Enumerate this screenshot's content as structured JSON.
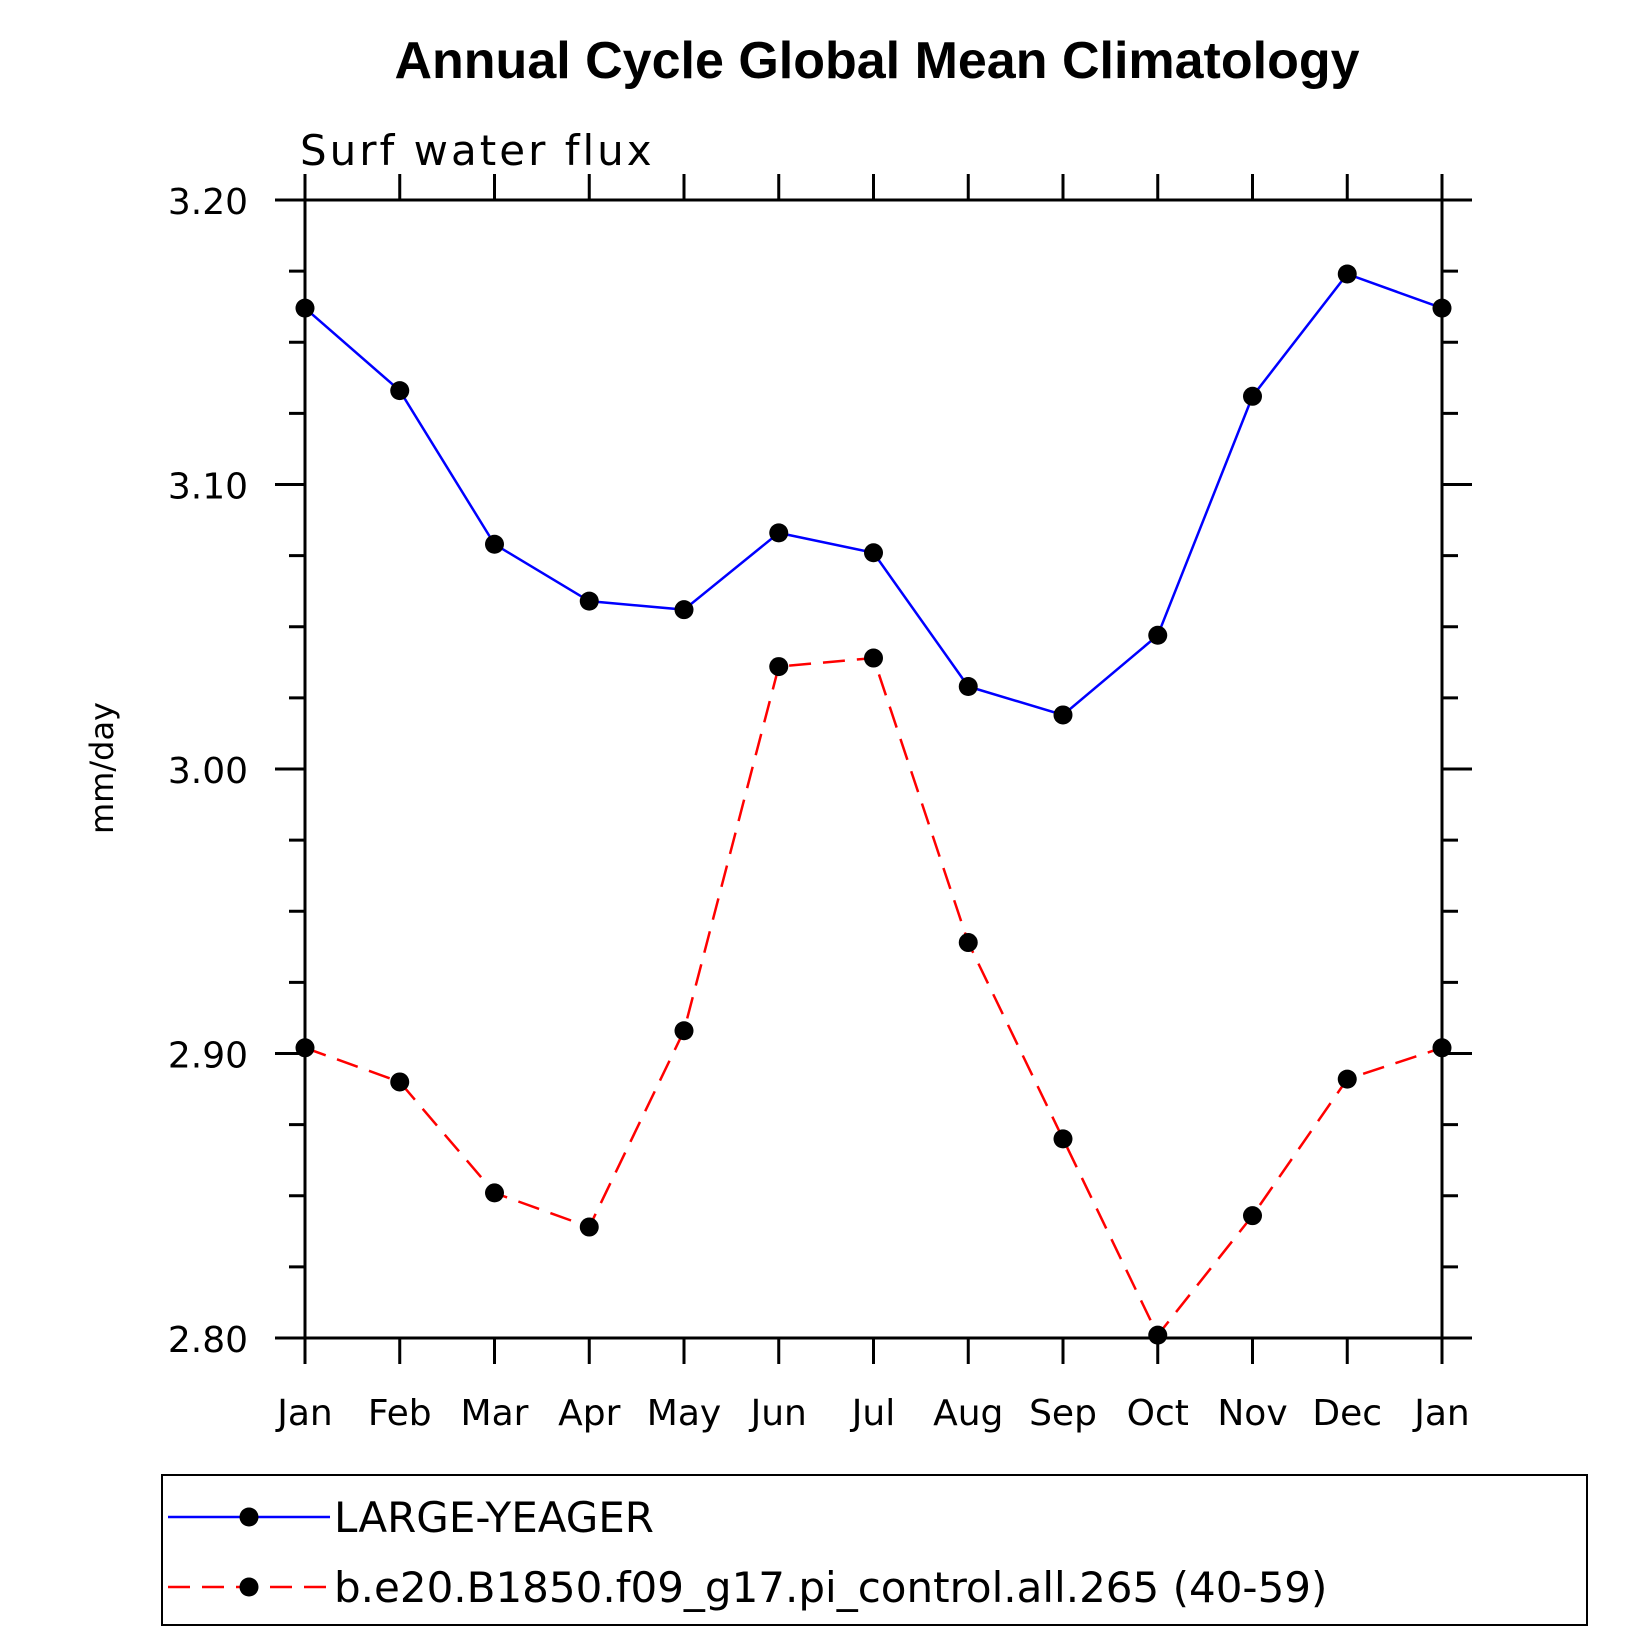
{
  "chart_data": {
    "type": "line",
    "title": "Annual Cycle Global Mean Climatology",
    "subtitle": "Surf water flux",
    "xlabel": "",
    "ylabel": "mm/day",
    "categories": [
      "Jan",
      "Feb",
      "Mar",
      "Apr",
      "May",
      "Jun",
      "Jul",
      "Aug",
      "Sep",
      "Oct",
      "Nov",
      "Dec",
      "Jan"
    ],
    "ylim": [
      2.8,
      3.2
    ],
    "yticks": [
      "2.80",
      "2.90",
      "3.00",
      "3.10",
      "3.20"
    ],
    "grid": false,
    "legend_placement": "bottom",
    "series": [
      {
        "name": "LARGE-YEAGER",
        "color": "#0000ff",
        "dash": "solid",
        "marker": "circle",
        "values": [
          3.162,
          3.133,
          3.079,
          3.059,
          3.056,
          3.083,
          3.076,
          3.029,
          3.019,
          3.047,
          3.131,
          3.174,
          3.162
        ]
      },
      {
        "name": "b.e20.B1850.f09_g17.pi_control.all.265 (40-59)",
        "color": "#ff0000",
        "dash": "dashed",
        "marker": "circle",
        "values": [
          2.902,
          2.89,
          2.851,
          2.839,
          2.908,
          3.036,
          3.039,
          2.939,
          2.87,
          2.801,
          2.843,
          2.891,
          2.902
        ]
      }
    ]
  }
}
